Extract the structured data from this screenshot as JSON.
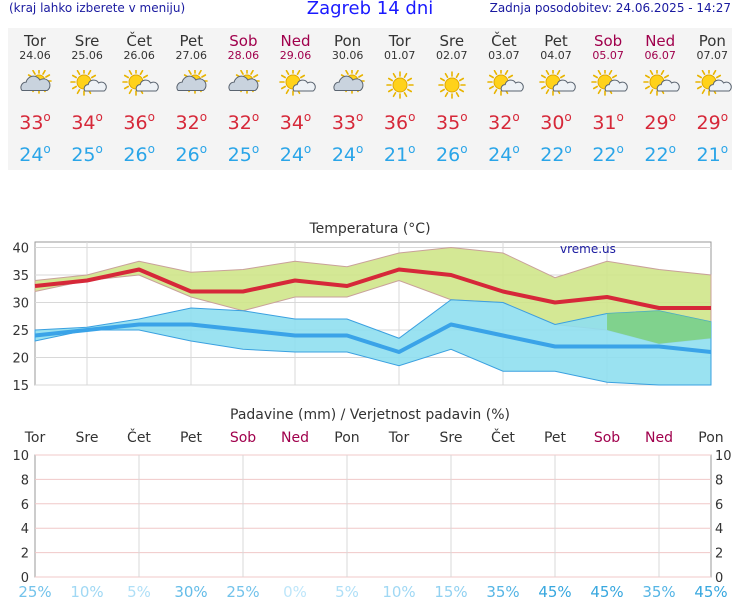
{
  "header": {
    "left": "(kraj lahko izberete v meniju)",
    "title": "Zagreb 14 dni",
    "right": "Zadnja posodobitev: 24.06.2025 - 14:27"
  },
  "days": [
    {
      "name": "Tor",
      "date": "24.06",
      "weekend": false,
      "icon": "cloudy-sun-icon",
      "max": "33",
      "min": "24"
    },
    {
      "name": "Sre",
      "date": "25.06",
      "weekend": false,
      "icon": "partly-sunny-icon",
      "max": "34",
      "min": "25"
    },
    {
      "name": "Čet",
      "date": "26.06",
      "weekend": false,
      "icon": "partly-sunny-icon",
      "max": "36",
      "min": "26"
    },
    {
      "name": "Pet",
      "date": "27.06",
      "weekend": false,
      "icon": "cloudy-sun-icon",
      "max": "32",
      "min": "26"
    },
    {
      "name": "Sob",
      "date": "28.06",
      "weekend": true,
      "icon": "cloudy-sun-icon",
      "max": "32",
      "min": "25"
    },
    {
      "name": "Ned",
      "date": "29.06",
      "weekend": true,
      "icon": "partly-sunny-icon",
      "max": "34",
      "min": "24"
    },
    {
      "name": "Pon",
      "date": "30.06",
      "weekend": false,
      "icon": "cloudy-sun-icon",
      "max": "33",
      "min": "24"
    },
    {
      "name": "Tor",
      "date": "01.07",
      "weekend": false,
      "icon": "sun-icon",
      "max": "36",
      "min": "21"
    },
    {
      "name": "Sre",
      "date": "02.07",
      "weekend": false,
      "icon": "sun-icon",
      "max": "35",
      "min": "26"
    },
    {
      "name": "Čet",
      "date": "03.07",
      "weekend": false,
      "icon": "partly-sunny-icon",
      "max": "32",
      "min": "24"
    },
    {
      "name": "Pet",
      "date": "04.07",
      "weekend": false,
      "icon": "partly-sunny-icon",
      "max": "30",
      "min": "22"
    },
    {
      "name": "Sob",
      "date": "05.07",
      "weekend": true,
      "icon": "partly-sunny-icon",
      "max": "31",
      "min": "22"
    },
    {
      "name": "Ned",
      "date": "06.07",
      "weekend": true,
      "icon": "partly-sunny-icon",
      "max": "29",
      "min": "22"
    },
    {
      "name": "Pon",
      "date": "07.07",
      "weekend": false,
      "icon": "partly-sunny-icon",
      "max": "29",
      "min": "21"
    }
  ],
  "deg_symbol": "o",
  "colors": {
    "max": "#d62839",
    "min": "#2aa5e8",
    "weekend": "#a0004c",
    "max_band": "#cfe58a",
    "min_band": "#8fdff0",
    "overlap": "#7ccf7c"
  },
  "chart_data": [
    {
      "type": "line",
      "title": "Temperatura (°C)",
      "watermark": "vreme.us",
      "ylim": [
        15,
        41
      ],
      "yticks": [
        40,
        35,
        30,
        25,
        20,
        15
      ],
      "grid": true,
      "x": [
        0,
        1,
        2,
        3,
        4,
        5,
        6,
        7,
        8,
        9,
        10,
        11,
        12,
        13
      ],
      "series": [
        {
          "role": "max",
          "values": [
            33,
            34,
            36,
            32,
            32,
            34,
            33,
            36,
            35,
            32,
            30,
            31,
            29,
            29
          ]
        },
        {
          "role": "min",
          "values": [
            24,
            25,
            26,
            26,
            25,
            24,
            24,
            21,
            26,
            24,
            22,
            22,
            22,
            21
          ]
        }
      ],
      "max_band": {
        "upper": [
          34,
          35,
          37.5,
          35.5,
          36,
          37.5,
          36.5,
          39,
          40,
          39,
          34.5,
          37.5,
          36,
          35
        ],
        "lower": [
          32,
          34,
          35,
          31,
          28.5,
          31,
          31,
          34,
          30.5,
          30,
          26,
          25,
          22.5,
          23.5
        ]
      },
      "min_band": {
        "upper": [
          25,
          25.5,
          27,
          29,
          28.5,
          27,
          27,
          23.5,
          30.5,
          30,
          26,
          28,
          28.5,
          26.5
        ],
        "lower": [
          23,
          25,
          25,
          23,
          21.5,
          21,
          21,
          18.5,
          21.5,
          17.5,
          17.5,
          15.5,
          15,
          15
        ]
      }
    },
    {
      "type": "bar",
      "title": "Padavine (mm) / Verjetnost padavin (%)",
      "categories": [
        "Tor",
        "Sre",
        "Čet",
        "Pet",
        "Sob",
        "Ned",
        "Pon",
        "Tor",
        "Sre",
        "Čet",
        "Pet",
        "Sob",
        "Ned",
        "Pon"
      ],
      "weekend": [
        false,
        false,
        false,
        false,
        true,
        true,
        false,
        false,
        false,
        false,
        false,
        true,
        true,
        false
      ],
      "values": [
        0,
        0,
        0,
        0,
        0,
        0,
        0,
        0,
        0,
        0,
        0,
        0,
        0,
        0
      ],
      "ylim": [
        0,
        10
      ],
      "yticks": [
        10,
        8,
        6,
        4,
        2,
        0
      ],
      "grid": true,
      "probability": [
        "25%",
        "10%",
        "5%",
        "30%",
        "25%",
        "0%",
        "5%",
        "10%",
        "15%",
        "35%",
        "45%",
        "45%",
        "35%",
        "45%"
      ],
      "probability_shade": [
        0.5,
        0.2,
        0.1,
        0.6,
        0.5,
        0.0,
        0.1,
        0.2,
        0.3,
        0.7,
        0.9,
        0.9,
        0.7,
        0.9
      ]
    }
  ]
}
